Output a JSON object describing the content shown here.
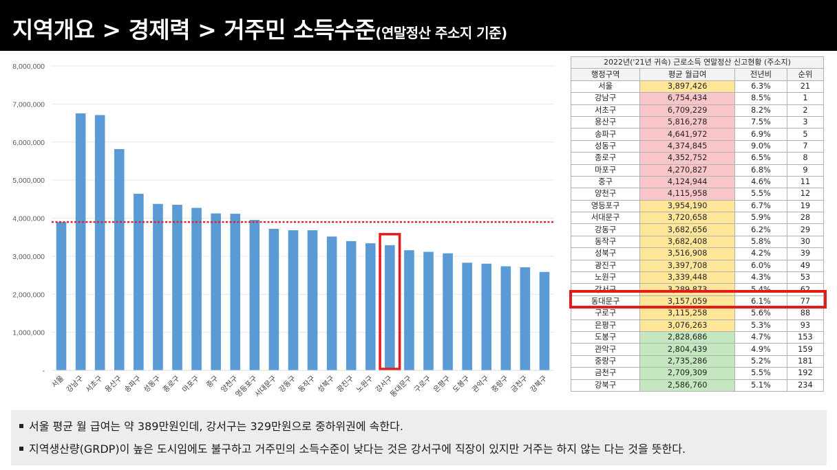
{
  "header": {
    "title": "지역개요 > 경제력 > 거주민 소득수준",
    "subtitle": "(연말정산 주소지 기준)"
  },
  "chart_data": {
    "type": "bar",
    "categories": [
      "서울",
      "강남구",
      "서초구",
      "용산구",
      "송파구",
      "성동구",
      "종로구",
      "마포구",
      "중구",
      "양천구",
      "영등포구",
      "서대문구",
      "강동구",
      "동작구",
      "성북구",
      "광진구",
      "노원구",
      "강서구",
      "동대문구",
      "구로구",
      "은평구",
      "도봉구",
      "관악구",
      "중랑구",
      "금천구",
      "강북구"
    ],
    "values": [
      3897426,
      6754434,
      6709229,
      5816278,
      4641972,
      4374845,
      4352752,
      4270827,
      4124944,
      4115958,
      3954190,
      3720658,
      3682656,
      3682408,
      3516908,
      3397708,
      3339448,
      3289873,
      3157059,
      3115258,
      3076263,
      2828686,
      2804439,
      2735286,
      2709309,
      2586760
    ],
    "ylim": [
      0,
      8000000
    ],
    "yticks": [
      "-",
      "1,000,000",
      "2,000,000",
      "3,000,000",
      "4,000,000",
      "5,000,000",
      "6,000,000",
      "7,000,000",
      "8,000,000"
    ],
    "reference_line": 3897426,
    "highlight_category": "강서구",
    "bar_color": "#5b9bd5",
    "reference_color": "#d62728",
    "highlight_color": "#e31b1b",
    "grid": true
  },
  "table": {
    "caption": "2022년('21년 귀속) 근로소득 연말정산 신고현황 (주소지)",
    "headers": [
      "행정구역",
      "평균 월급여",
      "전년비",
      "순위"
    ],
    "rows": [
      {
        "district": "서울",
        "salary": "3,897,426",
        "yoy": "6.3%",
        "rank": "21",
        "color": "yellow"
      },
      {
        "district": "강남구",
        "salary": "6,754,434",
        "yoy": "8.5%",
        "rank": "1",
        "color": "pink"
      },
      {
        "district": "서초구",
        "salary": "6,709,229",
        "yoy": "8.2%",
        "rank": "2",
        "color": "pink"
      },
      {
        "district": "용산구",
        "salary": "5,816,278",
        "yoy": "7.5%",
        "rank": "3",
        "color": "pink"
      },
      {
        "district": "송파구",
        "salary": "4,641,972",
        "yoy": "6.9%",
        "rank": "5",
        "color": "pink"
      },
      {
        "district": "성동구",
        "salary": "4,374,845",
        "yoy": "9.0%",
        "rank": "7",
        "color": "pink"
      },
      {
        "district": "종로구",
        "salary": "4,352,752",
        "yoy": "6.5%",
        "rank": "8",
        "color": "pink"
      },
      {
        "district": "마포구",
        "salary": "4,270,827",
        "yoy": "6.8%",
        "rank": "9",
        "color": "pink"
      },
      {
        "district": "중구",
        "salary": "4,124,944",
        "yoy": "4.6%",
        "rank": "11",
        "color": "pink"
      },
      {
        "district": "양천구",
        "salary": "4,115,958",
        "yoy": "5.5%",
        "rank": "12",
        "color": "pink"
      },
      {
        "district": "영등포구",
        "salary": "3,954,190",
        "yoy": "6.7%",
        "rank": "19",
        "color": "yellow"
      },
      {
        "district": "서대문구",
        "salary": "3,720,658",
        "yoy": "5.9%",
        "rank": "28",
        "color": "yellow"
      },
      {
        "district": "강동구",
        "salary": "3,682,656",
        "yoy": "6.2%",
        "rank": "29",
        "color": "yellow"
      },
      {
        "district": "동작구",
        "salary": "3,682,408",
        "yoy": "5.8%",
        "rank": "30",
        "color": "yellow"
      },
      {
        "district": "성북구",
        "salary": "3,516,908",
        "yoy": "4.2%",
        "rank": "39",
        "color": "yellow"
      },
      {
        "district": "광진구",
        "salary": "3,397,708",
        "yoy": "6.0%",
        "rank": "49",
        "color": "yellow"
      },
      {
        "district": "노원구",
        "salary": "3,339,448",
        "yoy": "4.3%",
        "rank": "53",
        "color": "yellow"
      },
      {
        "district": "강서구",
        "salary": "3,289,873",
        "yoy": "5.4%",
        "rank": "62",
        "color": "yellow"
      },
      {
        "district": "동대문구",
        "salary": "3,157,059",
        "yoy": "6.1%",
        "rank": "77",
        "color": "yellow"
      },
      {
        "district": "구로구",
        "salary": "3,115,258",
        "yoy": "5.6%",
        "rank": "88",
        "color": "yellow"
      },
      {
        "district": "은평구",
        "salary": "3,076,263",
        "yoy": "5.3%",
        "rank": "93",
        "color": "yellow"
      },
      {
        "district": "도봉구",
        "salary": "2,828,686",
        "yoy": "4.7%",
        "rank": "153",
        "color": "green"
      },
      {
        "district": "관악구",
        "salary": "2,804,439",
        "yoy": "4.9%",
        "rank": "159",
        "color": "green"
      },
      {
        "district": "중랑구",
        "salary": "2,735,286",
        "yoy": "5.2%",
        "rank": "181",
        "color": "green"
      },
      {
        "district": "금천구",
        "salary": "2,709,309",
        "yoy": "5.5%",
        "rank": "192",
        "color": "green"
      },
      {
        "district": "강북구",
        "salary": "2,586,760",
        "yoy": "5.1%",
        "rank": "234",
        "color": "green"
      }
    ],
    "highlight_district": "강서구"
  },
  "notes": [
    "서울 평균 월 급여는 약 389만원인데, 강서구는 329만원으로 중하위권에 속한다.",
    "지역생산량(GRDP)이 높은 도시임에도 불구하고 거주민의 소득수준이 낮다는 것은 강서구에 직장이 있지만 거주는 하지 않는 다는 것을 뜻한다."
  ]
}
